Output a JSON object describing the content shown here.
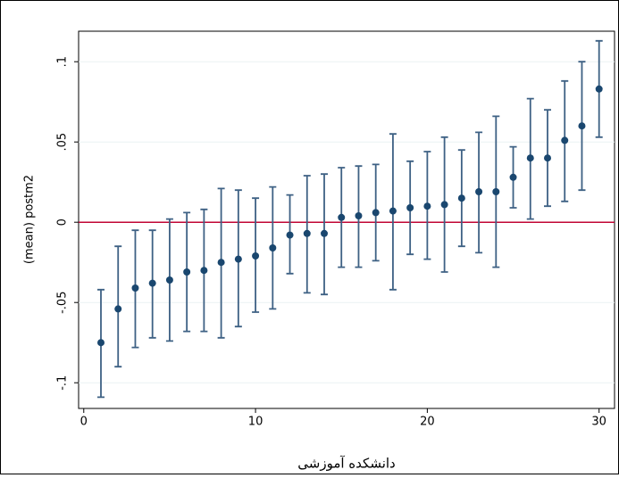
{
  "chart_data": {
    "type": "errorbar",
    "x_label": "دانشکده آموزشی",
    "y_label": "(mean) postm2",
    "x": [
      1,
      2,
      3,
      4,
      5,
      6,
      7,
      8,
      9,
      10,
      11,
      12,
      13,
      14,
      15,
      16,
      17,
      18,
      19,
      20,
      21,
      22,
      23,
      24,
      25,
      26,
      27,
      28,
      29,
      30
    ],
    "series": [
      {
        "color": "#1a476f",
        "bar_color": "#3e6184",
        "values": [
          -0.075,
          -0.054,
          -0.041,
          -0.038,
          -0.036,
          -0.031,
          -0.03,
          -0.025,
          -0.023,
          -0.021,
          -0.016,
          -0.008,
          -0.007,
          -0.007,
          0.003,
          0.004,
          0.006,
          0.007,
          0.009,
          0.01,
          0.011,
          0.015,
          0.019,
          0.019,
          0.028,
          0.04,
          0.04,
          0.051,
          0.06,
          0.083
        ],
        "lower": [
          -0.109,
          -0.09,
          -0.078,
          -0.072,
          -0.074,
          -0.068,
          -0.068,
          -0.072,
          -0.065,
          -0.056,
          -0.054,
          -0.032,
          -0.044,
          -0.045,
          -0.028,
          -0.028,
          -0.024,
          -0.042,
          -0.02,
          -0.023,
          -0.031,
          -0.015,
          -0.019,
          -0.028,
          0.009,
          0.002,
          0.01,
          0.013,
          0.02,
          0.053
        ],
        "upper": [
          -0.042,
          -0.015,
          -0.005,
          -0.005,
          0.002,
          0.006,
          0.008,
          0.021,
          0.02,
          0.015,
          0.022,
          0.017,
          0.029,
          0.03,
          0.034,
          0.035,
          0.036,
          0.055,
          0.038,
          0.044,
          0.053,
          0.045,
          0.056,
          0.066,
          0.047,
          0.077,
          0.07,
          0.088,
          0.1,
          0.113
        ]
      }
    ],
    "xlim": [
      -0.3,
      30.9
    ],
    "xticks": [
      0,
      10,
      20,
      30
    ],
    "ylim": [
      -0.116,
      0.119
    ],
    "yticks": [
      {
        "value": -0.1,
        "label": "-.1"
      },
      {
        "value": -0.05,
        "label": "-.05"
      },
      0,
      {
        "value": 0.05,
        "label": ".05"
      },
      {
        "value": 0.1,
        "label": ".1"
      }
    ],
    "grid": true,
    "reference_line": 0,
    "reference_color": "#c10534"
  }
}
